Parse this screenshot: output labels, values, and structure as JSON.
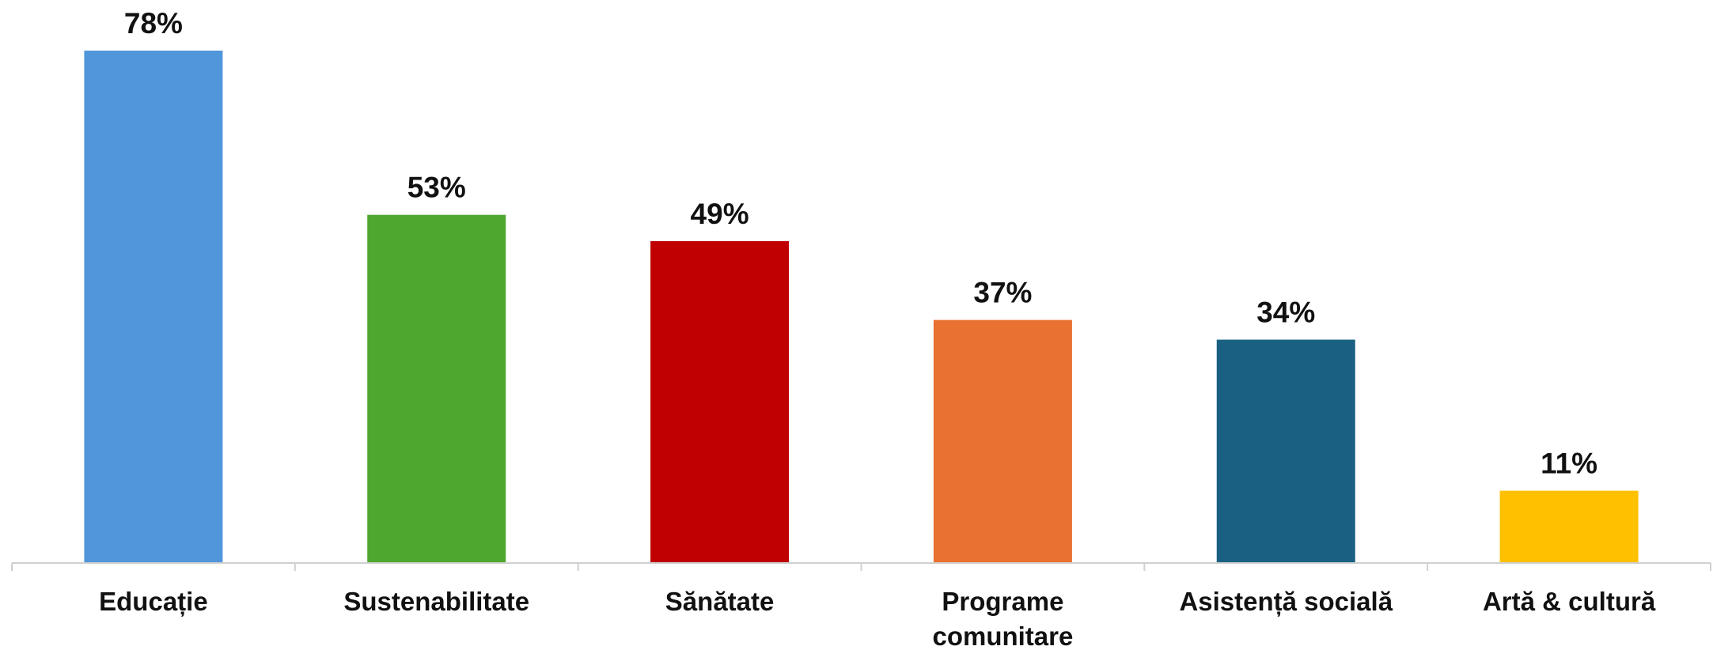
{
  "chart_data": {
    "type": "bar",
    "title": "",
    "xlabel": "",
    "ylabel": "",
    "categories": [
      [
        "Educație"
      ],
      [
        "Sustenabilitate"
      ],
      [
        "Sănătate"
      ],
      [
        "Programe",
        "comunitare"
      ],
      [
        "Asistență socială"
      ],
      [
        "Artă & cultură"
      ]
    ],
    "values": [
      78,
      53,
      49,
      37,
      34,
      11
    ],
    "value_labels": [
      "78%",
      "53%",
      "49%",
      "37%",
      "34%",
      "11%"
    ],
    "colors": [
      "#5096DA",
      "#4EA72E",
      "#C00000",
      "#E97132",
      "#196082",
      "#FFC000"
    ],
    "ylim": [
      0,
      80
    ],
    "grid": false,
    "legend": "none"
  }
}
